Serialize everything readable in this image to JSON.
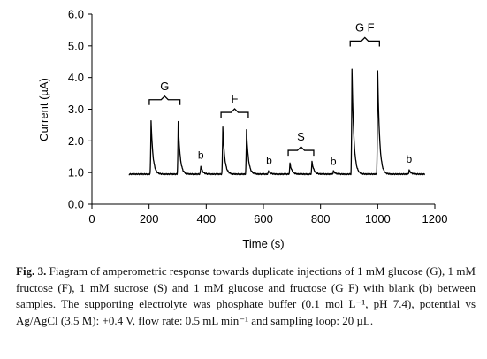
{
  "chart_data": {
    "type": "line",
    "title": "",
    "xlabel": "Time (s)",
    "ylabel": "Current (µA)",
    "xlim": [
      0,
      1200
    ],
    "ylim": [
      0.0,
      6.0
    ],
    "x_ticks": [
      0,
      200,
      400,
      600,
      800,
      1000,
      1200
    ],
    "x_tick_labels": [
      "0",
      "200",
      "400",
      "600",
      "800",
      "1000",
      "1200"
    ],
    "y_ticks": [
      0.0,
      1.0,
      2.0,
      3.0,
      4.0,
      5.0,
      6.0
    ],
    "y_tick_labels": [
      "0.0",
      "1.0",
      "2.0",
      "3.0",
      "4.0",
      "5.0",
      "6.0"
    ],
    "grid": false,
    "legend": "none",
    "baseline_current": 0.95,
    "time_range": [
      130,
      1165
    ],
    "series": [
      {
        "peaks": [
          {
            "t": 207,
            "height": 2.65
          },
          {
            "t": 302,
            "height": 2.6
          },
          {
            "t": 381,
            "height": 1.2
          },
          {
            "t": 458,
            "height": 2.45
          },
          {
            "t": 541,
            "height": 2.35
          },
          {
            "t": 618,
            "height": 1.05
          },
          {
            "t": 693,
            "height": 1.3
          },
          {
            "t": 770,
            "height": 1.35
          },
          {
            "t": 845,
            "height": 1.05
          },
          {
            "t": 910,
            "height": 4.25
          },
          {
            "t": 1000,
            "height": 4.2
          },
          {
            "t": 1110,
            "height": 1.08
          }
        ]
      }
    ],
    "annotations": [
      {
        "text": "G",
        "x_range": [
          207,
          302
        ],
        "y": 3.3,
        "bracket": true
      },
      {
        "text": "F",
        "x_range": [
          458,
          541
        ],
        "y": 2.9,
        "bracket": true
      },
      {
        "text": "S",
        "x_range": [
          693,
          770
        ],
        "y": 1.7,
        "bracket": true
      },
      {
        "text": "G F",
        "x_range": [
          910,
          1000
        ],
        "y": 5.15,
        "bracket": true
      },
      {
        "text": "b",
        "x": 381,
        "y": 1.27
      },
      {
        "text": "b",
        "x": 620,
        "y": 1.1
      },
      {
        "text": "b",
        "x": 845,
        "y": 1.07
      },
      {
        "text": "b",
        "x": 1110,
        "y": 1.15
      }
    ]
  },
  "caption": {
    "label": "Fig. 3.",
    "text": "Fiagram of amperometric response towards duplicate injections of 1 mM glucose (G), 1 mM fructose (F), 1 mM sucrose (S) and 1 mM glucose and fructose (G F) with blank (b) between samples. The supporting electrolyte was phosphate buffer (0.1 mol L⁻¹, pH 7.4), potential vs Ag/AgCl (3.5 M): +0.4 V, flow rate: 0.5 mL min⁻¹ and sampling loop: 20 µL."
  }
}
